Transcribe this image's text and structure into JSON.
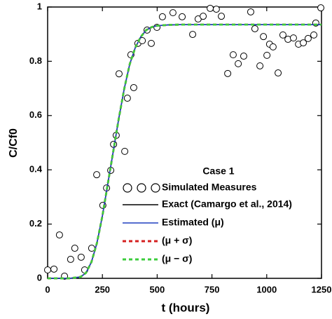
{
  "chart_data": {
    "type": "line",
    "xlabel": "t (hours)",
    "ylabel": "C/Cf0",
    "legend_title": "Case 1",
    "xlim": [
      0,
      1250
    ],
    "ylim": [
      0,
      1
    ],
    "xticks": [
      0,
      250,
      500,
      750,
      1000,
      1250
    ],
    "yticks": [
      0,
      0.2,
      0.4,
      0.6,
      0.8,
      1
    ],
    "series": [
      {
        "name": "Simulated Measures",
        "type": "scatter",
        "color": "#000000",
        "x": [
          0,
          29,
          54,
          77,
          105,
          124,
          153,
          169,
          201,
          224,
          252,
          269,
          288,
          301,
          313,
          326,
          352,
          364,
          380,
          393,
          412,
          432,
          454,
          473,
          499,
          524,
          572,
          614,
          662,
          687,
          710,
          742,
          770,
          793,
          822,
          847,
          870,
          895,
          927,
          946,
          969,
          985,
          1001,
          1013,
          1029,
          1052,
          1074,
          1097,
          1122,
          1145,
          1167,
          1189,
          1215,
          1224,
          1247
        ],
        "values": [
          0.031,
          0.034,
          0.16,
          0.008,
          0.07,
          0.111,
          0.078,
          0.031,
          0.111,
          0.382,
          0.269,
          0.333,
          0.398,
          0.494,
          0.527,
          0.754,
          0.468,
          0.664,
          0.824,
          0.703,
          0.866,
          0.876,
          0.915,
          0.866,
          0.925,
          0.964,
          0.979,
          0.964,
          0.899,
          0.956,
          0.966,
          0.995,
          0.992,
          0.966,
          0.755,
          0.824,
          0.791,
          0.819,
          0.982,
          0.92,
          0.783,
          0.891,
          0.822,
          0.863,
          0.853,
          0.757,
          0.897,
          0.881,
          0.886,
          0.863,
          0.868,
          0.884,
          0.897,
          0.941,
          0.997
        ]
      },
      {
        "name": "Exact (Camargo et al., 2014)",
        "type": "line",
        "color": "#000000",
        "style": "solid",
        "x": [
          0,
          100,
          150,
          175,
          200,
          225,
          250,
          275,
          300,
          325,
          350,
          375,
          400,
          425,
          450,
          475,
          500,
          550,
          600,
          700,
          800,
          1000,
          1250
        ],
        "values": [
          0,
          0,
          0.005,
          0.02,
          0.06,
          0.13,
          0.23,
          0.35,
          0.47,
          0.59,
          0.7,
          0.79,
          0.85,
          0.89,
          0.915,
          0.926,
          0.931,
          0.934,
          0.935,
          0.935,
          0.935,
          0.935,
          0.935
        ]
      },
      {
        "name": "Estimated (μ)",
        "type": "line",
        "color": "#1f3fbf",
        "style": "solid",
        "x": [
          0,
          100,
          150,
          175,
          200,
          225,
          250,
          275,
          300,
          325,
          350,
          375,
          400,
          425,
          450,
          475,
          500,
          550,
          600,
          700,
          800,
          1000,
          1250
        ],
        "values": [
          0,
          0,
          0.005,
          0.02,
          0.06,
          0.13,
          0.23,
          0.35,
          0.47,
          0.59,
          0.7,
          0.79,
          0.85,
          0.89,
          0.915,
          0.926,
          0.931,
          0.934,
          0.935,
          0.935,
          0.935,
          0.935,
          0.935
        ]
      },
      {
        "name": "(μ + σ)",
        "type": "line",
        "color": "#d62020",
        "style": "dashed",
        "x": [
          0,
          100,
          150,
          175,
          200,
          225,
          250,
          275,
          300,
          325,
          350,
          375,
          400,
          425,
          450,
          475,
          500,
          550,
          600,
          700,
          800,
          1000,
          1250
        ],
        "values": [
          0,
          0,
          0.005,
          0.02,
          0.06,
          0.13,
          0.23,
          0.35,
          0.47,
          0.59,
          0.7,
          0.79,
          0.85,
          0.89,
          0.915,
          0.926,
          0.931,
          0.934,
          0.935,
          0.935,
          0.935,
          0.935,
          0.935
        ]
      },
      {
        "name": "(μ − σ)",
        "type": "line",
        "color": "#3ccc3c",
        "style": "dashed",
        "x": [
          0,
          100,
          150,
          175,
          200,
          225,
          250,
          275,
          300,
          325,
          350,
          375,
          400,
          425,
          450,
          475,
          500,
          550,
          600,
          700,
          800,
          1000,
          1250
        ],
        "values": [
          0,
          0,
          0.005,
          0.02,
          0.06,
          0.13,
          0.23,
          0.35,
          0.47,
          0.59,
          0.7,
          0.79,
          0.85,
          0.89,
          0.915,
          0.926,
          0.931,
          0.934,
          0.935,
          0.935,
          0.935,
          0.935,
          0.935
        ]
      }
    ]
  }
}
